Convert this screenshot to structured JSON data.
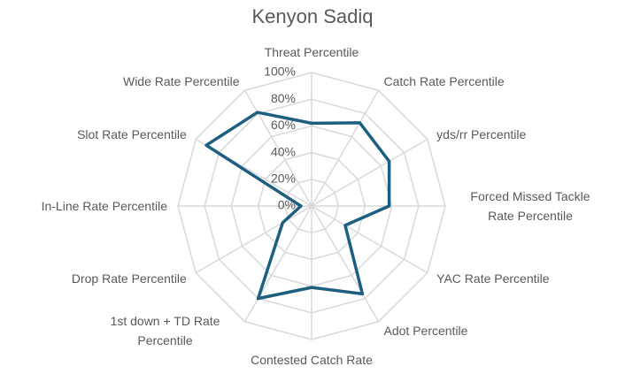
{
  "chart_data": {
    "type": "radar",
    "title": "Kenyon Sadiq",
    "categories": [
      "Threat Percentile",
      "Catch Rate Percentile",
      "yds/rr Percentile",
      "Forced Missed Tackle Rate Percentile",
      "YAC Rate Percentile",
      "Adot Percentile",
      "Contested Catch Rate Percentile",
      "1st down + TD Rate Percentile",
      "Drop Rate Percentile",
      "In-Line Rate Percentile",
      "Slot Rate Percentile",
      "Wide Rate Percentile"
    ],
    "values": [
      62,
      72,
      67,
      58,
      29,
      76,
      61,
      80,
      25,
      8,
      91,
      81
    ],
    "color": "#1d5f80",
    "ylim": [
      0,
      100
    ],
    "yticks": [
      {
        "value": 0,
        "label": "0%"
      },
      {
        "value": 20,
        "label": "20%"
      },
      {
        "value": 40,
        "label": "40%"
      },
      {
        "value": 60,
        "label": "60%"
      },
      {
        "value": 80,
        "label": "80%"
      },
      {
        "value": 100,
        "label": "100%"
      }
    ],
    "grid": true
  }
}
